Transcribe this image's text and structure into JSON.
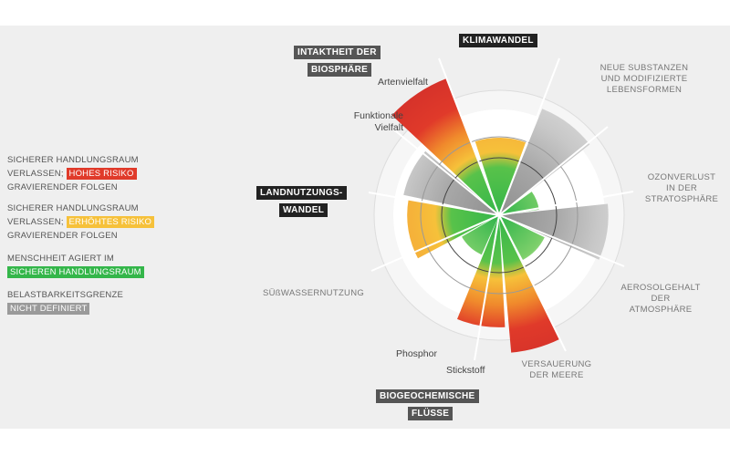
{
  "colors": {
    "high_risk": "#e03a2a",
    "increased_risk": "#f6c13a",
    "safe": "#34b64a",
    "not_defined": "#9a9a9a",
    "background": "#efefef"
  },
  "legend": [
    {
      "line1": "SICHERER HANDLUNGSRAUM",
      "line2_prefix": "VERLASSEN;",
      "tag": "HOHES RISIKO",
      "tag_color": "#e03a2a",
      "line3": "GRAVIERENDER FOLGEN"
    },
    {
      "line1": "SICHERER HANDLUNGSRAUM",
      "line2_prefix": "VERLASSEN;",
      "tag": "ERHÖHTES RISIKO",
      "tag_color": "#f6c13a",
      "line3": "GRAVIERENDER FOLGEN"
    },
    {
      "line1": "MENSCHHEIT AGIERT IM",
      "tag": "SICHEREN HANDLUNGSRAUM",
      "tag_color": "#34b64a"
    },
    {
      "line1": "BELASTBARKEITSGRENZE",
      "tag": "NICHT DEFINIERT",
      "tag_color": "#9a9a9a"
    }
  ],
  "labels": {
    "klimawandel": "KLIMAWANDEL",
    "biosphaere_1": "INTAKTHEIT DER",
    "biosphaere_2": "BIOSPHÄRE",
    "artenvielfalt": "Artenvielfalt",
    "funktionale_1": "Funktionale",
    "funktionale_2": "Vielfalt",
    "landnutzung_1": "LANDNUTZUNGS-",
    "landnutzung_2": "WANDEL",
    "substanzen_1": "NEUE SUBSTANZEN",
    "substanzen_2": "UND MODIFIZIERTE",
    "substanzen_3": "LEBENSFORMEN",
    "ozon_1": "OZONVERLUST",
    "ozon_2": "IN DER",
    "ozon_3": "STRATOSPHÄRE",
    "aerosol_1": "AEROSOLGEHALT",
    "aerosol_2": "DER",
    "aerosol_3": "ATMOSPHÄRE",
    "versauerung_1": "VERSAUERUNG",
    "versauerung_2": "DER MEERE",
    "suesswasser": "SÜßWASSERNUTZUNG",
    "phosphor": "Phosphor",
    "stickstoff": "Stickstoff",
    "biogeo_1": "BIOGEOCHEMISCHE",
    "biogeo_2": "FLÜSSE"
  },
  "boundaries": [
    {
      "key": "klimawandel",
      "status": "increased_risk",
      "level": 1.35
    },
    {
      "key": "substanzen",
      "status": "not_defined",
      "level": 2.0
    },
    {
      "key": "ozon",
      "status": "safe",
      "level": 0.7
    },
    {
      "key": "aerosol",
      "status": "not_defined",
      "level": 1.9
    },
    {
      "key": "versauerung",
      "status": "safe",
      "level": 0.88
    },
    {
      "key": "stickstoff",
      "status": "high_risk",
      "level": 2.4
    },
    {
      "key": "phosphor",
      "status": "high_risk",
      "level": 1.95
    },
    {
      "key": "suesswasser",
      "status": "safe",
      "level": 0.75
    },
    {
      "key": "landnutzung",
      "status": "increased_risk",
      "level": 1.6
    },
    {
      "key": "funktionale_vielfalt",
      "status": "not_defined",
      "level": 1.7
    },
    {
      "key": "artenvielfalt",
      "status": "high_risk",
      "level": 2.55
    }
  ]
}
